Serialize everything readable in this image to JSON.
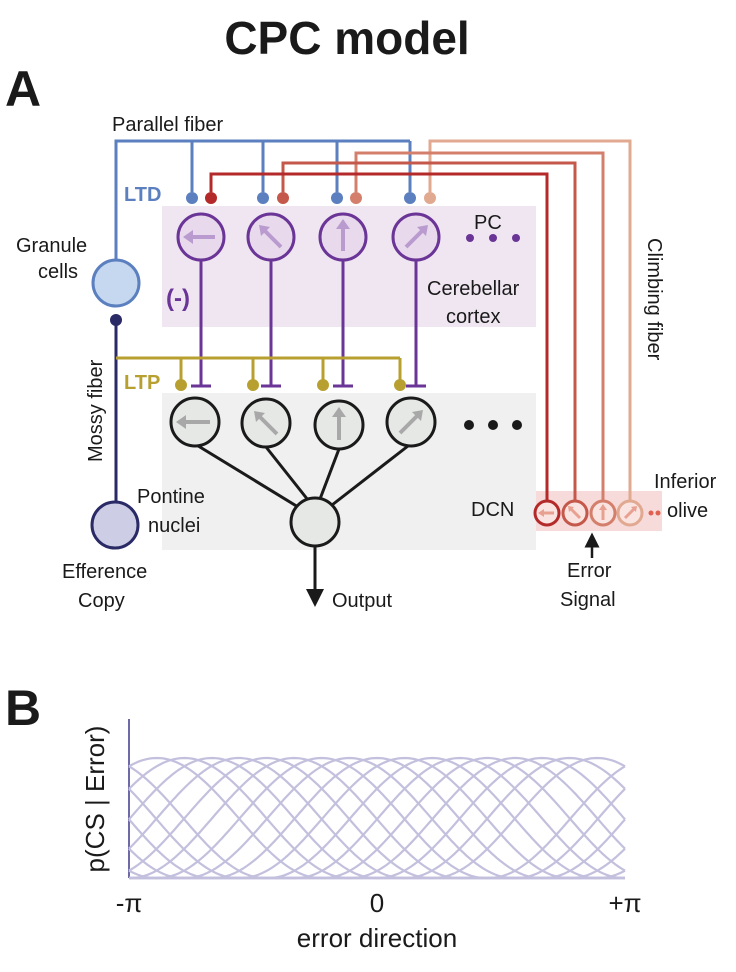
{
  "title": "CPC model",
  "panel_a": {
    "letter": "A",
    "labels": {
      "parallel_fiber": "Parallel fiber",
      "ltd": "LTD",
      "ltp": "LTP",
      "granule_1": "Granule",
      "granule_2": "cells",
      "inhibition": "(-)",
      "pc": "PC",
      "cortex_1": "Cerebellar",
      "cortex_2": "cortex",
      "climbing_fiber": "Climbing fiber",
      "mossy_fiber": "Mossy fiber",
      "pontine_1": "Pontine",
      "pontine_2": "nuclei",
      "efference_1": "Efference",
      "efference_2": "Copy",
      "dcn": "DCN",
      "olive_1": "Inferior",
      "olive_2": "olive",
      "error_1": "Error",
      "error_2": "Signal",
      "output": "Output"
    },
    "colors": {
      "parallel_fiber": "#5b7fbf",
      "purkinje": "#6a3596",
      "mossy": "#2a2a66",
      "ltp": "#b8a030",
      "climbing": [
        "#b42a2a",
        "#c4584a",
        "#d47f6b",
        "#e0a990"
      ],
      "cortex_bg": "#f0e6f2",
      "dcn_bg": "#f0f0f0",
      "olive_bg": "#f7dada",
      "curves": "#c3c0de"
    },
    "pc_arrows": [
      "left",
      "up-left",
      "up",
      "up-right"
    ]
  },
  "panel_b": {
    "letter": "B",
    "chart_data": {
      "type": "line",
      "title": "",
      "xlabel": "error direction",
      "ylabel": "p(CS | Error)",
      "x_ticks": [
        "-π",
        "0",
        "+π"
      ],
      "xlim": [
        -3.1416,
        3.1416
      ],
      "grid": false,
      "legend": "none",
      "series": [
        {
          "peak": -2.79
        },
        {
          "peak": -2.44
        },
        {
          "peak": -2.09
        },
        {
          "peak": -1.75
        },
        {
          "peak": -1.4
        },
        {
          "peak": -1.05
        },
        {
          "peak": -0.7
        },
        {
          "peak": -0.35
        },
        {
          "peak": 0.0
        },
        {
          "peak": 0.35
        },
        {
          "peak": 0.7
        },
        {
          "peak": 1.05
        },
        {
          "peak": 1.4
        },
        {
          "peak": 1.75
        },
        {
          "peak": 2.09
        },
        {
          "peak": 2.44
        },
        {
          "peak": 2.79
        }
      ]
    }
  }
}
